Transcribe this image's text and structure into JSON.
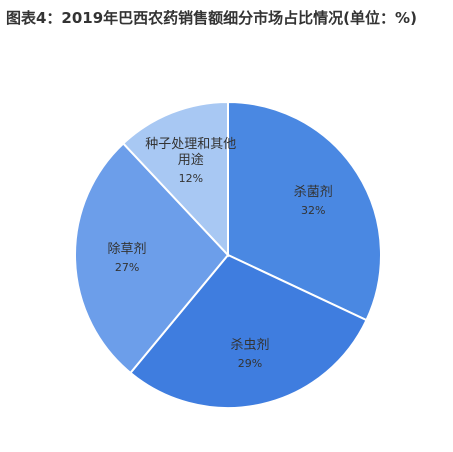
{
  "chart_data": {
    "type": "pie",
    "title": "图表4：2019年巴西农药销售额细分市场占比情况(单位：%)",
    "categories": [
      "杀菌剂",
      "杀虫剂",
      "除草剂",
      "种子处理和其他用途"
    ],
    "values": [
      32,
      29,
      27,
      12
    ],
    "value_labels": [
      "32%",
      "29%",
      "27%",
      "12%"
    ],
    "colors": [
      "#4a88e2",
      "#3f7ddf",
      "#6c9eea",
      "#a8c8f3"
    ]
  }
}
